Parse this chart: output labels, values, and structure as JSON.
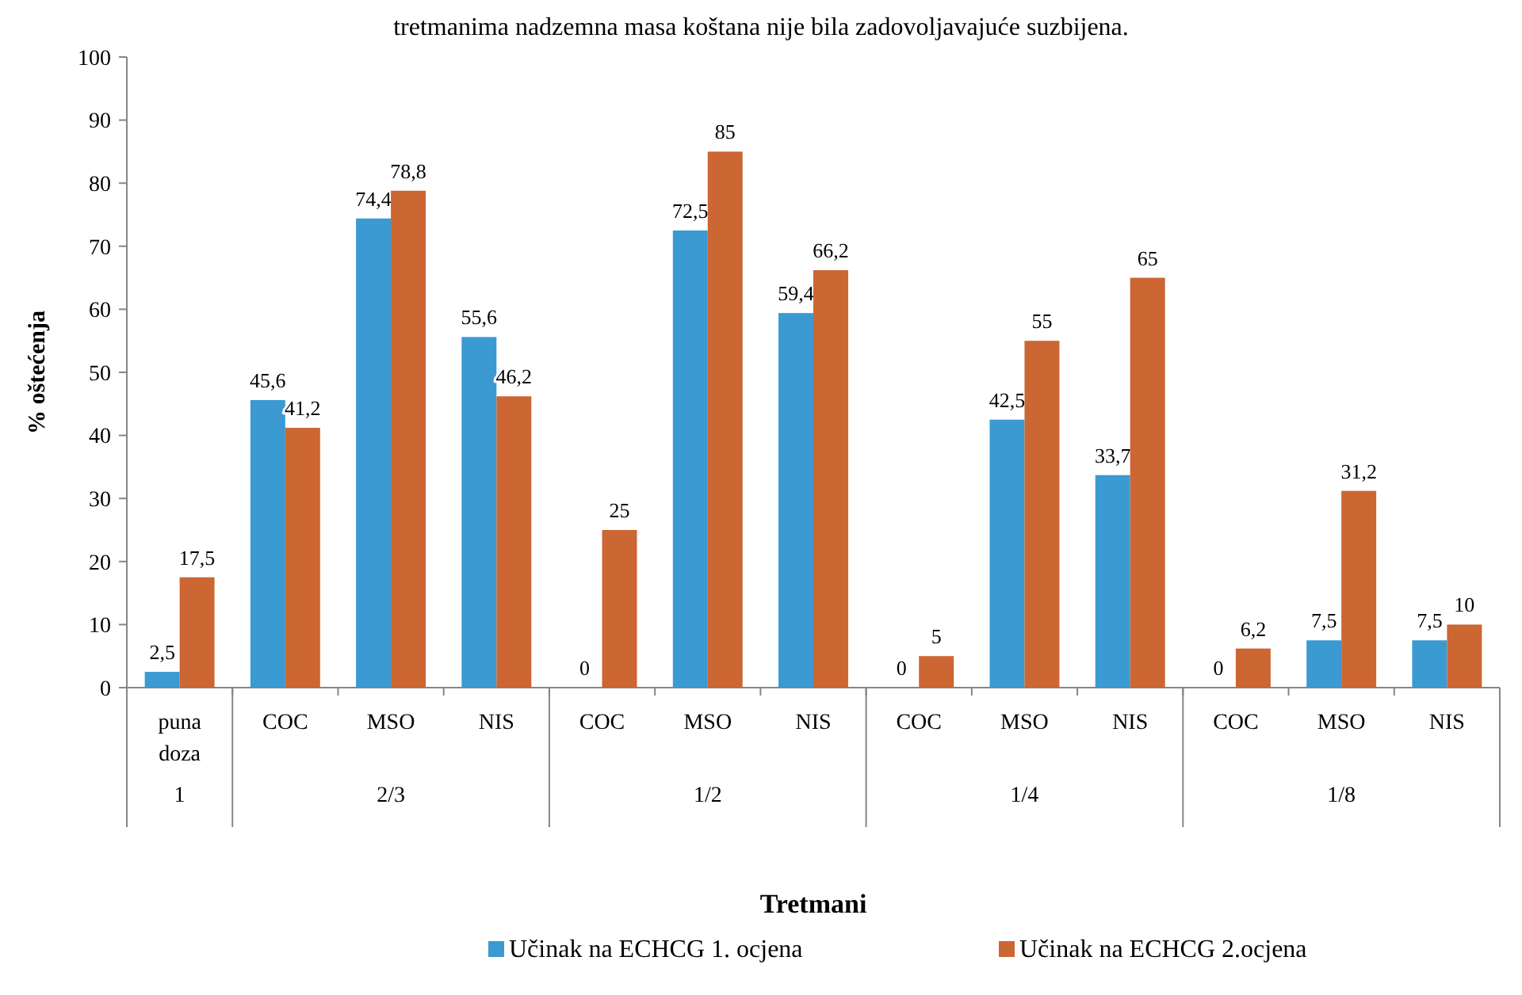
{
  "chart_data": {
    "type": "bar",
    "xlabel": "Tretmani",
    "ylabel": "% oštećenja",
    "categories": [
      "puna doza",
      "COC",
      "MSO",
      "NIS",
      "COC",
      "MSO",
      "NIS",
      "COC",
      "MSO",
      "NIS",
      "COC",
      "MSO",
      "NIS"
    ],
    "series": [
      {
        "name": "Učinak na ECHCG 1. ocjena",
        "color": "#3a9ad1",
        "values": [
          2.5,
          45.6,
          74.4,
          55.6,
          0,
          72.5,
          59.4,
          0,
          42.5,
          33.7,
          0,
          7.5,
          7.5
        ],
        "value_labels": [
          "2,5",
          "45,6",
          "74,4",
          "55,6",
          "0",
          "72,5",
          "59,4",
          "0",
          "42,5",
          "33,7",
          "0",
          "7,5",
          "7,5"
        ]
      },
      {
        "name": "Učinak na ECHCG 2.ocjena",
        "color": "#cc6633",
        "values": [
          17.5,
          41.2,
          78.8,
          46.2,
          25,
          85,
          66.2,
          5,
          55,
          65,
          6.2,
          31.2,
          10
        ],
        "value_labels": [
          "17,5",
          "41,2",
          "78,8",
          "46,2",
          "25",
          "85",
          "66,2",
          "5",
          "55",
          "65",
          "6,2",
          "31,2",
          "10"
        ]
      }
    ],
    "ylim": [
      0,
      100
    ],
    "yticks": [
      0,
      10,
      20,
      30,
      40,
      50,
      60,
      70,
      80,
      90,
      100
    ],
    "grid": false,
    "legend": "bottom",
    "annotations": [
      "tretmanima nadzemna masa koštana nije bila zadovoljavajuće suzbijena.",
      "1",
      "2/3",
      "1/2",
      "1/4",
      "1/8"
    ]
  }
}
